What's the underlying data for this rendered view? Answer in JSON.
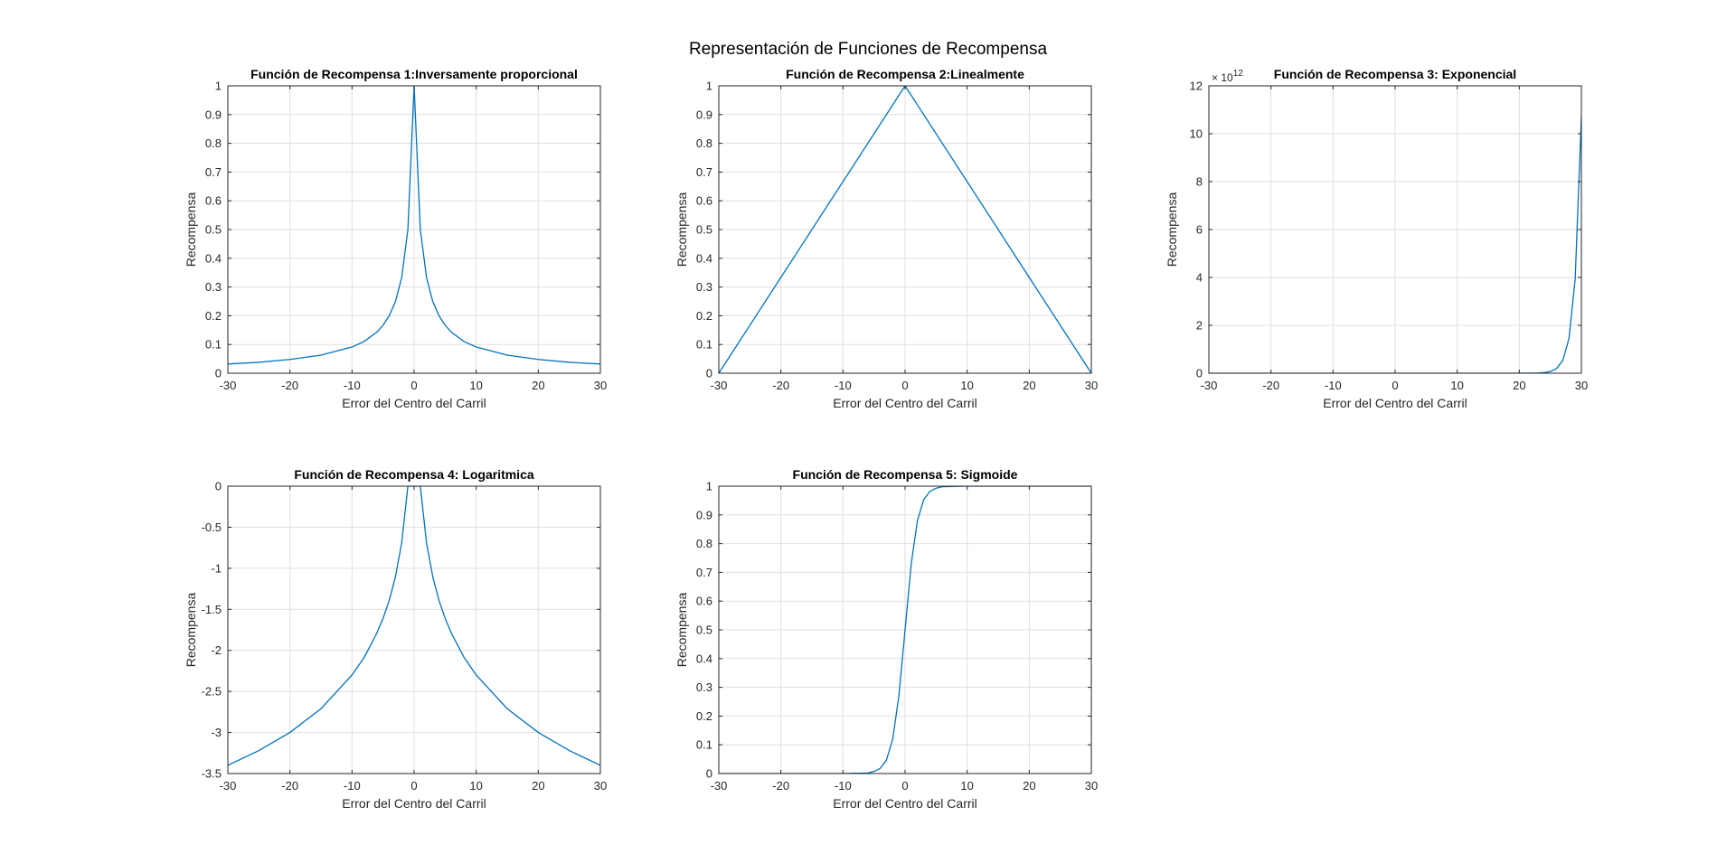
{
  "figure": {
    "title": "Representación de Funciones de Recompensa"
  },
  "colors": {
    "line": "#0072BD",
    "grid": "#DFDFDF",
    "axis": "#262626",
    "background": "#FFFFFF"
  },
  "chart_data": [
    {
      "id": "r1",
      "type": "line",
      "title": "Función de Recompensa 1:Inversamente proporcional",
      "xlabel": "Error del Centro del Carril",
      "ylabel": "Recompensa",
      "xlim": [
        -30,
        30
      ],
      "ylim": [
        0,
        1
      ],
      "xticks": [
        -30,
        -20,
        -10,
        0,
        10,
        20,
        30
      ],
      "yticks": [
        0,
        0.1,
        0.2,
        0.3,
        0.4,
        0.5,
        0.6,
        0.7,
        0.8,
        0.9,
        1
      ],
      "ytick_labels": [
        "0",
        "0.1",
        "0.2",
        "0.3",
        "0.4",
        "0.5",
        "0.6",
        "0.7",
        "0.8",
        "0.9",
        "1"
      ],
      "exponent_label": "",
      "grid": true,
      "x": [
        -30,
        -25,
        -20,
        -15,
        -10,
        -8,
        -6,
        -5,
        -4,
        -3,
        -2,
        -1,
        0,
        1,
        2,
        3,
        4,
        5,
        6,
        8,
        10,
        15,
        20,
        25,
        30
      ],
      "y": [
        0.032,
        0.038,
        0.048,
        0.063,
        0.091,
        0.111,
        0.143,
        0.167,
        0.2,
        0.25,
        0.333,
        0.5,
        1,
        0.5,
        0.333,
        0.25,
        0.2,
        0.167,
        0.143,
        0.111,
        0.091,
        0.063,
        0.048,
        0.038,
        0.032
      ]
    },
    {
      "id": "r2",
      "type": "line",
      "title": "Función de Recompensa 2:Linealmente",
      "xlabel": "Error del Centro del Carril",
      "ylabel": "Recompensa",
      "xlim": [
        -30,
        30
      ],
      "ylim": [
        0,
        1
      ],
      "xticks": [
        -30,
        -20,
        -10,
        0,
        10,
        20,
        30
      ],
      "yticks": [
        0,
        0.1,
        0.2,
        0.3,
        0.4,
        0.5,
        0.6,
        0.7,
        0.8,
        0.9,
        1
      ],
      "ytick_labels": [
        "0",
        "0.1",
        "0.2",
        "0.3",
        "0.4",
        "0.5",
        "0.6",
        "0.7",
        "0.8",
        "0.9",
        "1"
      ],
      "exponent_label": "",
      "grid": true,
      "x": [
        -30,
        0,
        30
      ],
      "y": [
        0,
        1,
        0
      ]
    },
    {
      "id": "r3",
      "type": "line",
      "title": "Función de Recompensa 3: Exponencial",
      "xlabel": "Error del Centro del Carril",
      "ylabel": "Recompensa",
      "xlim": [
        -30,
        30
      ],
      "ylim": [
        0,
        12
      ],
      "xticks": [
        -30,
        -20,
        -10,
        0,
        10,
        20,
        30
      ],
      "yticks": [
        0,
        2,
        4,
        6,
        8,
        10,
        12
      ],
      "ytick_labels": [
        "0",
        "2",
        "4",
        "6",
        "8",
        "10",
        "12"
      ],
      "exponent_label": "12",
      "exponent_prefix": "× 10",
      "grid": true,
      "x": [
        -30,
        20,
        23,
        24,
        25,
        26,
        27,
        28,
        29,
        30
      ],
      "y": [
        0,
        0,
        0.01,
        0.026,
        0.072,
        0.196,
        0.532,
        1.446,
        3.93,
        10.69
      ]
    },
    {
      "id": "r4",
      "type": "line",
      "title": "Función de Recompensa 4: Logaritmica",
      "xlabel": "Error del Centro del Carril",
      "ylabel": "Recompensa",
      "xlim": [
        -30,
        30
      ],
      "ylim": [
        -3.5,
        0
      ],
      "xticks": [
        -30,
        -20,
        -10,
        0,
        10,
        20,
        30
      ],
      "yticks": [
        -3.5,
        -3,
        -2.5,
        -2,
        -1.5,
        -1,
        -0.5,
        0
      ],
      "ytick_labels": [
        "-3.5",
        "-3",
        "-2.5",
        "-2",
        "-1.5",
        "-1",
        "-0.5",
        "0"
      ],
      "exponent_label": "",
      "grid": true,
      "x": [
        -30,
        -25,
        -20,
        -15,
        -10,
        -8,
        -6,
        -5,
        -4,
        -3,
        -2,
        -1,
        1,
        2,
        3,
        4,
        5,
        6,
        8,
        10,
        15,
        20,
        25,
        30
      ],
      "y": [
        -3.4,
        -3.22,
        -3.0,
        -2.71,
        -2.3,
        -2.08,
        -1.79,
        -1.61,
        -1.39,
        -1.1,
        -0.69,
        0,
        0,
        -0.69,
        -1.1,
        -1.39,
        -1.61,
        -1.79,
        -2.08,
        -2.3,
        -2.71,
        -3.0,
        -3.22,
        -3.4
      ]
    },
    {
      "id": "r5",
      "type": "line",
      "title": "Función de Recompensa 5: Sigmoide",
      "xlabel": "Error del Centro del Carril",
      "ylabel": "Recompensa",
      "xlim": [
        -30,
        30
      ],
      "ylim": [
        0,
        1
      ],
      "xticks": [
        -30,
        -20,
        -10,
        0,
        10,
        20,
        30
      ],
      "yticks": [
        0,
        0.1,
        0.2,
        0.3,
        0.4,
        0.5,
        0.6,
        0.7,
        0.8,
        0.9,
        1
      ],
      "ytick_labels": [
        "0",
        "0.1",
        "0.2",
        "0.3",
        "0.4",
        "0.5",
        "0.6",
        "0.7",
        "0.8",
        "0.9",
        "1"
      ],
      "exponent_label": "",
      "grid": true,
      "x": [
        -30,
        -10,
        -6,
        -5,
        -4,
        -3,
        -2,
        -1,
        0,
        1,
        2,
        3,
        4,
        5,
        6,
        10,
        30
      ],
      "y": [
        0,
        0,
        0.002,
        0.007,
        0.018,
        0.047,
        0.119,
        0.269,
        0.5,
        0.731,
        0.881,
        0.953,
        0.982,
        0.993,
        0.998,
        1,
        1
      ]
    }
  ]
}
